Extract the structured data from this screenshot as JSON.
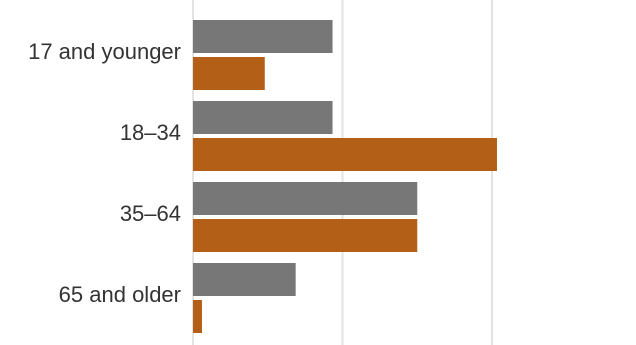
{
  "chart_data": {
    "type": "bar",
    "orientation": "horizontal",
    "categories": [
      "17 and younger",
      "18–34",
      "35–64",
      "65 and older"
    ],
    "series": [
      {
        "values": [
          14,
          14,
          22.5,
          10.3
        ]
      },
      {
        "values": [
          7.2,
          30.5,
          22.5,
          0.9
        ]
      }
    ],
    "xlim": [
      0,
      30
    ],
    "gridlines_at": [
      0,
      15,
      30
    ],
    "grid": true,
    "legend": "none",
    "title": "",
    "xlabel": "",
    "ylabel": ""
  },
  "colors": {
    "series_0": "#777777",
    "series_1": "#b35f17",
    "grid": "#e3e3e3",
    "label": "#333333"
  }
}
